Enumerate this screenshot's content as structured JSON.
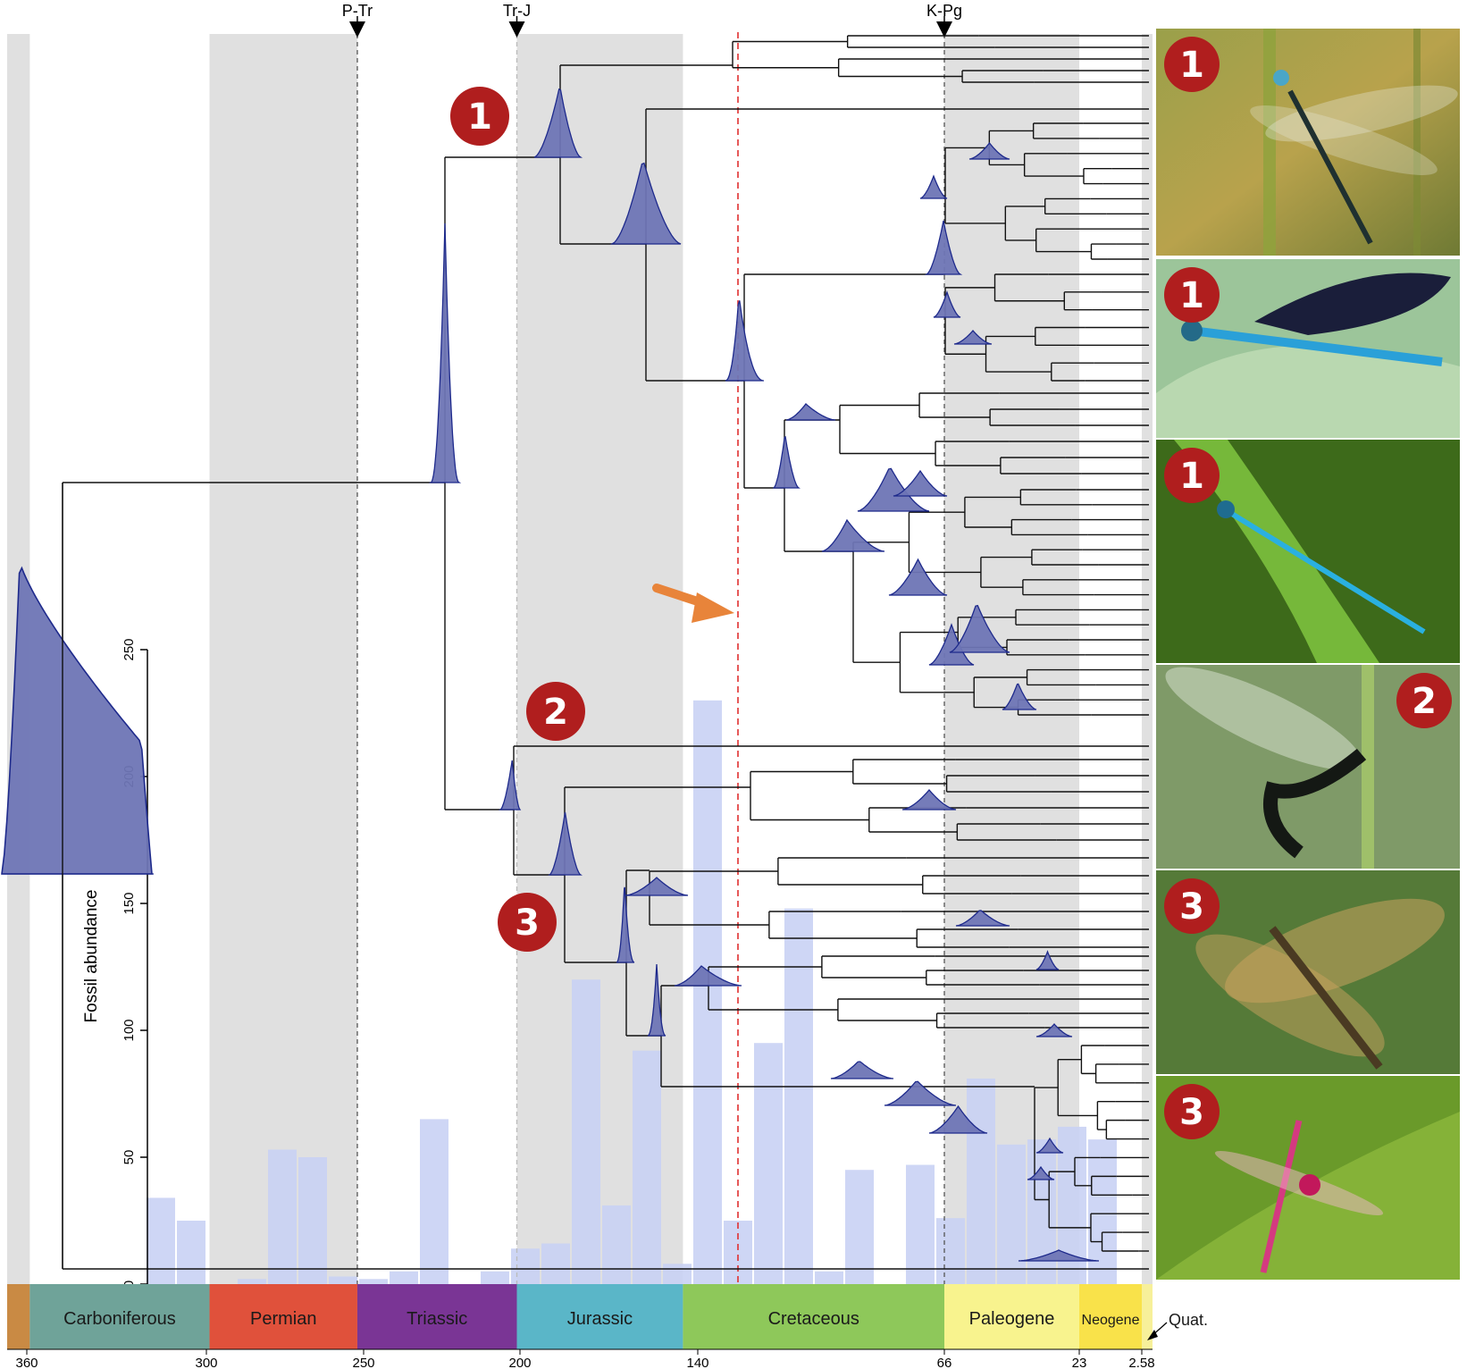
{
  "events": [
    {
      "label": "P-Tr",
      "age": 252
    },
    {
      "label": "Tr-J",
      "age": 201
    },
    {
      "label": "K-Pg",
      "age": 66
    }
  ],
  "time_axis": {
    "tick_labels": [
      "360",
      "300",
      "250",
      "200",
      "140",
      "66",
      "23",
      "2.58"
    ],
    "periods": [
      {
        "name": "",
        "start": 365,
        "end": 359,
        "color": "#c98a44"
      },
      {
        "name": "Carboniferous",
        "start": 359,
        "end": 299,
        "color": "#6fa399"
      },
      {
        "name": "Permian",
        "start": 299,
        "end": 252,
        "color": "#e0513b"
      },
      {
        "name": "Triassic",
        "start": 252,
        "end": 201,
        "color": "#7a3595"
      },
      {
        "name": "Jurassic",
        "start": 201,
        "end": 145,
        "color": "#5ab6c8"
      },
      {
        "name": "Cretaceous",
        "start": 145,
        "end": 66,
        "color": "#8ec85a"
      },
      {
        "name": "Paleogene",
        "start": 66,
        "end": 23,
        "color": "#f8f38e"
      },
      {
        "name": "Neogene",
        "start": 23,
        "end": 2.58,
        "color": "#f9e24a"
      }
    ],
    "quaternary_label": "Quat."
  },
  "fossil_axis": {
    "label": "Fossil abundance",
    "ticks": [
      "0",
      "50",
      "100",
      "150",
      "200",
      "250"
    ]
  },
  "fossil_histogram": [
    34,
    25,
    0,
    2,
    53,
    50,
    3,
    2,
    5,
    65,
    0,
    5,
    14,
    16,
    120,
    31,
    92,
    8,
    230,
    25,
    95,
    148,
    5,
    45,
    0,
    47,
    26,
    81,
    55,
    57,
    62,
    57
  ],
  "badges": [
    {
      "text": "1"
    },
    {
      "text": "2"
    },
    {
      "text": "3"
    }
  ],
  "photo_badges": [
    "1",
    "1",
    "1",
    "2",
    "3",
    "3"
  ],
  "colors": {
    "density_fill": "#6e75b5",
    "density_stroke": "#1e2a8c",
    "bar_fill": "#c9d2f4",
    "shade": "#e0e0e0",
    "badge": "#b01e1e",
    "arrow": "#e8843a",
    "red_line": "#e03030"
  }
}
